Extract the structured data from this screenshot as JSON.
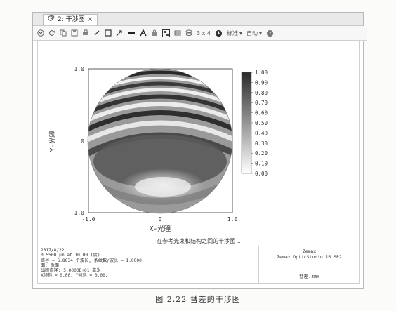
{
  "tab": {
    "label": "2: 干涉图",
    "close": "×"
  },
  "toolbar": {
    "layout_label": "3 x 4",
    "standard_label": "标准",
    "auto_label": "自动"
  },
  "plot": {
    "y_ticks": [
      "1.0",
      "0",
      "-1.0"
    ],
    "x_ticks": [
      "-1.0",
      "0",
      "1.0"
    ],
    "xlabel": "X-光瞳",
    "ylabel": "Y-光瞳",
    "colorbar_ticks": [
      "1.00",
      "0.90",
      "0.80",
      "0.70",
      "0.60",
      "0.50",
      "0.40",
      "0.30",
      "0.20",
      "0.10",
      "0.00"
    ]
  },
  "info": {
    "title": "在参考光束和结构之间的干涉图 1",
    "lines": [
      "2017/8/22",
      "0.5500 μm at 10.00 (度).",
      "峰谷 = 6.8834 个波长, 条纹数/波长 = 1.0000.",
      "面: 像面",
      "出瞳直径: 5.0000E+01 毫米",
      "X倾斜 = 0.00, Y倾斜 = 0.00."
    ],
    "company": "Zemax",
    "product": "Zemax OpticStudio 16 SP2",
    "file": "彗差.zmx"
  },
  "caption": "图 2.22   彗差的干涉图"
}
